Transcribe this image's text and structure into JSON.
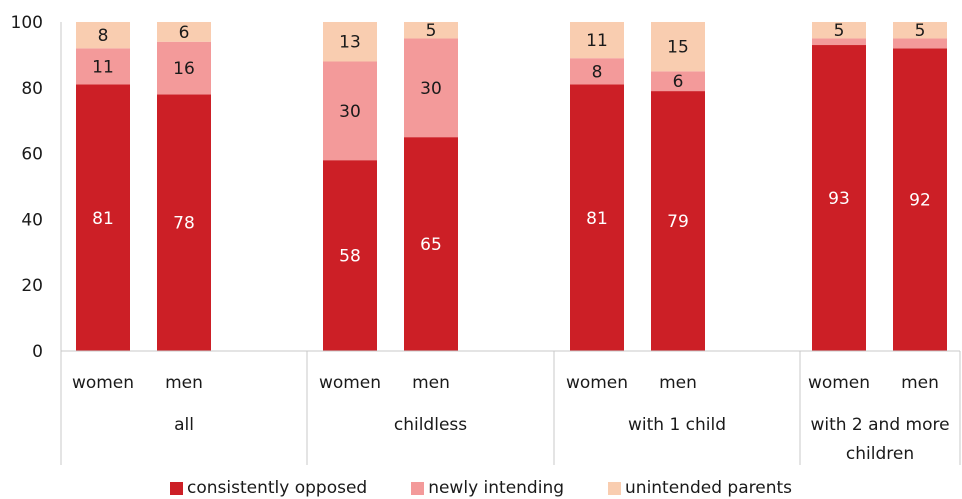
{
  "chart_data": {
    "type": "bar",
    "stacked": true,
    "groups": [
      "all",
      "childless",
      "with 1 child",
      "with 2 and more children"
    ],
    "subcategories": [
      "women",
      "men"
    ],
    "categories": [
      "all / women",
      "all / men",
      "childless / women",
      "childless / men",
      "with 1 child / women",
      "with 1 child / men",
      "with 2 and more children / women",
      "with 2 and more children / men"
    ],
    "series": [
      {
        "name": "consistently opposed",
        "color": "#cc1f26",
        "values": [
          81,
          78,
          58,
          65,
          81,
          79,
          93,
          92
        ],
        "labels": [
          "81",
          "78",
          "58",
          "65",
          "81",
          "79",
          "93",
          "92"
        ]
      },
      {
        "name": "newly intending",
        "color": "#f39a9a",
        "values": [
          11,
          16,
          30,
          30,
          8,
          6,
          2,
          3
        ],
        "labels": [
          "11",
          "16",
          "30",
          "30",
          "8",
          "6",
          "",
          ""
        ]
      },
      {
        "name": "unintended parents",
        "color": "#f9cdb0",
        "values": [
          8,
          6,
          13,
          5,
          11,
          15,
          5,
          5
        ],
        "labels": [
          "8",
          "6",
          "13",
          "5",
          "11",
          "15",
          "5",
          "5"
        ]
      }
    ],
    "ylim": [
      0,
      100
    ],
    "yticks": [
      "0",
      "20",
      "40",
      "60",
      "80",
      "100"
    ],
    "title": "",
    "xlabel": "",
    "ylabel": "",
    "grid": false,
    "legend_position": "bottom"
  }
}
